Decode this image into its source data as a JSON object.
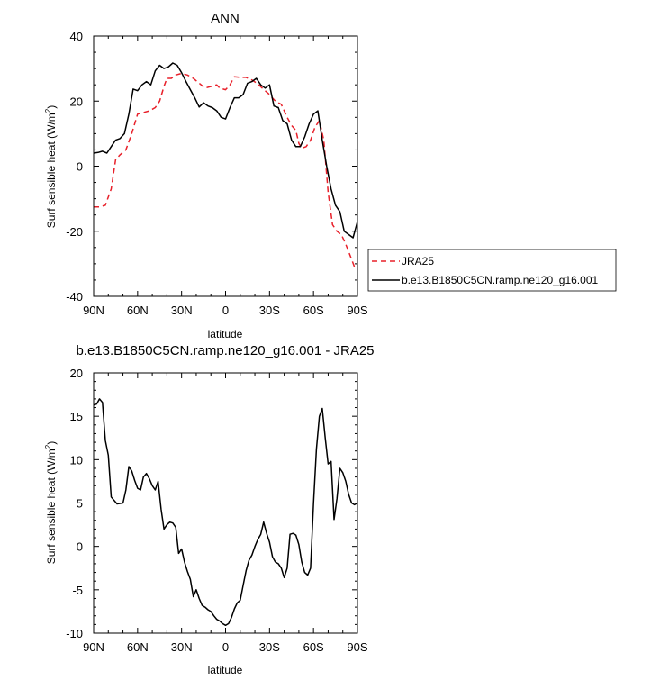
{
  "chart_data": [
    {
      "type": "line",
      "title": "ANN",
      "xlabel": "latitude",
      "ylabel": "Surf sensible heat (W/m",
      "ylabel_sup": "2",
      "ylabel_close": ")",
      "xlim": [
        90,
        -90
      ],
      "ylim": [
        -40,
        40
      ],
      "x_ticks": [
        90,
        60,
        30,
        0,
        -30,
        -60,
        -90
      ],
      "x_tick_labels": [
        "90N",
        "60N",
        "30N",
        "0",
        "30S",
        "60S",
        "90S"
      ],
      "y_ticks": [
        -40,
        -20,
        0,
        20,
        40
      ],
      "y_tick_labels": [
        "-40",
        "-20",
        "0",
        "20",
        "40"
      ],
      "legend_position": "right, below plot",
      "series": [
        {
          "name": "JRA25",
          "color": "#e8202a",
          "dash": "dashed",
          "x": [
            90,
            86,
            82,
            78,
            75,
            72,
            68,
            64,
            60,
            56,
            52,
            48,
            45,
            42,
            40,
            37,
            34,
            30,
            26,
            22,
            18,
            14,
            10,
            6,
            4,
            0,
            -3,
            -6,
            -10,
            -14,
            -18,
            -22,
            -25,
            -30,
            -34,
            -38,
            -42,
            -45,
            -48,
            -50,
            -52,
            -55,
            -58,
            -61,
            -64,
            -67,
            -70,
            -73,
            -76,
            -79,
            -82,
            -85,
            -88,
            -90
          ],
          "y": [
            -12.5,
            -12.5,
            -12,
            -7,
            2,
            3.5,
            5,
            10,
            16,
            16.5,
            17,
            18,
            20,
            24.5,
            27,
            27,
            28,
            28.5,
            28,
            27,
            25.5,
            24,
            24.5,
            25,
            24,
            23.5,
            25,
            27.5,
            27.3,
            27.3,
            26.5,
            25.3,
            24,
            22,
            20,
            19,
            15,
            12.5,
            11,
            7,
            5.5,
            6,
            8,
            12,
            14,
            8,
            -8,
            -18,
            -20,
            -21,
            -24,
            -27.5,
            -31,
            -30
          ]
        },
        {
          "name": "b.e13.B1850C5CN.ramp.ne120_g16.001",
          "color": "#000000",
          "dash": "solid",
          "x": [
            90,
            87,
            84,
            81,
            78,
            75,
            72,
            69,
            66,
            63,
            60,
            57,
            54,
            51,
            48,
            45,
            42,
            39,
            36,
            33,
            30,
            27,
            24,
            21,
            18,
            15,
            12,
            9,
            6,
            3,
            0,
            -3,
            -6,
            -9,
            -12,
            -15,
            -18,
            -21,
            -24,
            -27,
            -30,
            -33,
            -36,
            -39,
            -42,
            -45,
            -48,
            -51,
            -54,
            -57,
            -60,
            -63,
            -66,
            -69,
            -72,
            -75,
            -78,
            -81,
            -84,
            -87,
            -90
          ],
          "y": [
            4,
            4.2,
            4.6,
            4,
            6,
            8,
            8.5,
            10,
            16,
            23.7,
            23.2,
            25,
            26,
            25,
            29.3,
            31,
            30,
            30.5,
            31.7,
            31,
            28.7,
            26,
            23.5,
            21,
            18.2,
            19.5,
            18.5,
            18,
            17,
            15,
            14.5,
            18,
            21,
            21,
            22,
            25.5,
            26,
            27,
            25,
            24,
            25,
            18.5,
            18,
            14,
            13,
            8,
            6,
            6,
            9,
            13,
            16,
            17,
            8,
            0,
            -7,
            -12,
            -14,
            -20,
            -21,
            -22,
            -17
          ]
        }
      ]
    },
    {
      "type": "line",
      "title": "b.e13.B1850C5CN.ramp.ne120_g16.001 - JRA25",
      "xlabel": "latitude",
      "ylabel": "Surf sensible heat (W/m",
      "ylabel_sup": "2",
      "ylabel_close": ")",
      "xlim": [
        90,
        -90
      ],
      "ylim": [
        -10,
        20
      ],
      "x_ticks": [
        90,
        60,
        30,
        0,
        -30,
        -60,
        -90
      ],
      "x_tick_labels": [
        "90N",
        "60N",
        "30N",
        "0",
        "30S",
        "60S",
        "90S"
      ],
      "y_ticks": [
        -10,
        -5,
        0,
        5,
        10,
        15,
        20
      ],
      "y_tick_labels": [
        "-10",
        "-5",
        "0",
        "5",
        "10",
        "15",
        "20"
      ],
      "series": [
        {
          "name": "b.e13.B1850C5CN.ramp.ne120_g16.001 - JRA25",
          "color": "#000000",
          "dash": "solid",
          "x": [
            90,
            88,
            86,
            84,
            82,
            80,
            78,
            74,
            70,
            68,
            66,
            64,
            62,
            60,
            58,
            56,
            54,
            52,
            50,
            48,
            46,
            44,
            42,
            40,
            38,
            36,
            34,
            32,
            30,
            28,
            26,
            24,
            22,
            20,
            18,
            16,
            14,
            12,
            10,
            8,
            6,
            4,
            2,
            0,
            -2,
            -4,
            -6,
            -8,
            -10,
            -12,
            -14,
            -16,
            -18,
            -20,
            -22,
            -24,
            -26,
            -28,
            -30,
            -32,
            -34,
            -36,
            -38,
            -40,
            -42,
            -44,
            -46,
            -48,
            -50,
            -52,
            -54,
            -56,
            -58,
            -60,
            -62,
            -64,
            -66,
            -68,
            -70,
            -72,
            -74,
            -76,
            -78,
            -80,
            -82,
            -84,
            -86,
            -88,
            -90
          ],
          "y": [
            16.3,
            16.4,
            17,
            16.6,
            12.2,
            10.5,
            5.7,
            4.9,
            5,
            6.5,
            9.2,
            8.7,
            7.6,
            6.7,
            6.5,
            8,
            8.4,
            7.8,
            7,
            6.5,
            7.5,
            4.3,
            2,
            2.5,
            2.8,
            2.7,
            2.2,
            -0.8,
            -0.3,
            -1.8,
            -2.9,
            -3.8,
            -5.8,
            -5,
            -6,
            -6.8,
            -7,
            -7.3,
            -7.5,
            -8,
            -8.4,
            -8.6,
            -8.9,
            -9.1,
            -8.9,
            -8.2,
            -7.2,
            -6.5,
            -6.2,
            -4.5,
            -2.8,
            -1.6,
            -1,
            0,
            0.8,
            1.4,
            2.8,
            1.5,
            0.5,
            -1.2,
            -1.8,
            -2,
            -2.5,
            -3.6,
            -2.5,
            1.4,
            1.5,
            1.3,
            0.2,
            -1.8,
            -3,
            -3.3,
            -2.5,
            5,
            11.2,
            15,
            15.9,
            12.5,
            9.5,
            9.8,
            3.1,
            5.5,
            9,
            8.5,
            7.5,
            6,
            5,
            4.8,
            5
          ]
        }
      ]
    }
  ]
}
